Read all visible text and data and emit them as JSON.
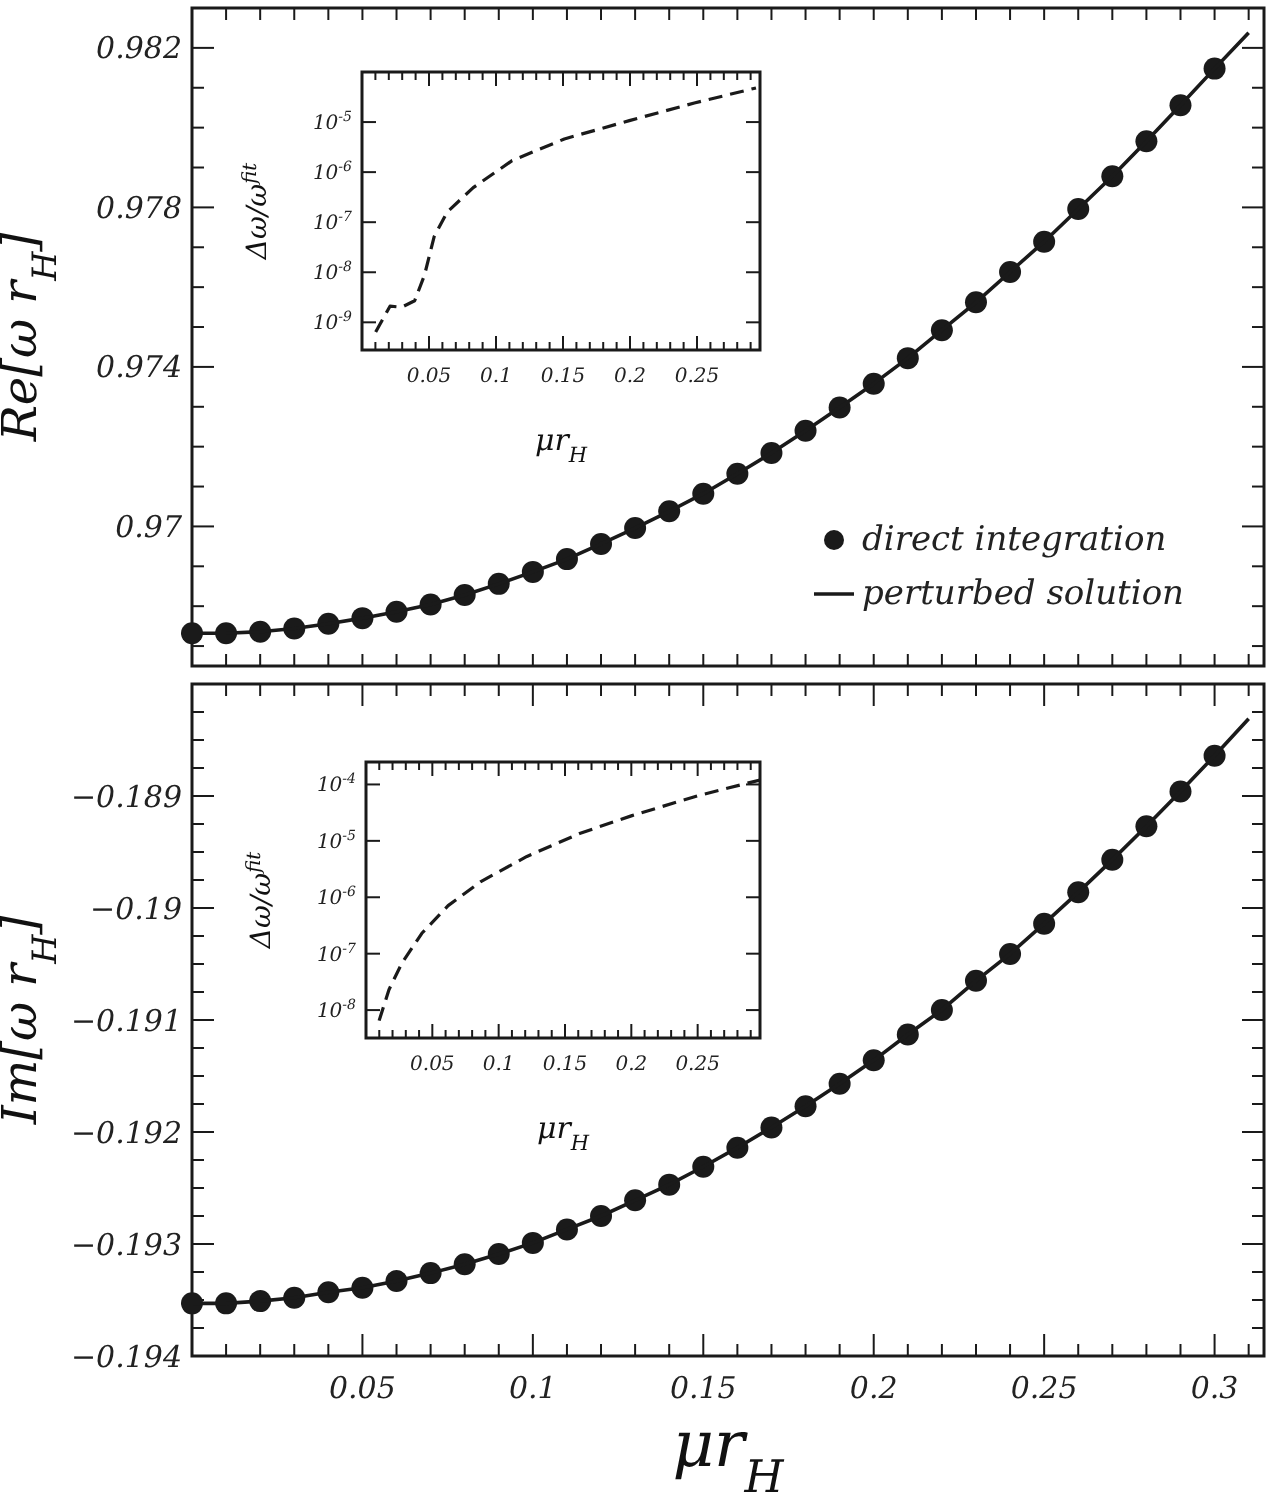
{
  "chart_data": [
    {
      "type": "line",
      "ylabel": "Re[ω r$_{H}$]",
      "xlim": [
        0,
        0.3145
      ],
      "ylim": [
        0.9665,
        0.983
      ],
      "tick_labels": "y",
      "grid": false,
      "legend": "bottom right",
      "xticks": [
        {
          "value": 0,
          "label": null
        },
        {
          "value": 0.01,
          "label": null
        },
        {
          "value": 0.02,
          "label": null
        },
        {
          "value": 0.03,
          "label": null
        },
        {
          "value": 0.04,
          "label": null
        },
        {
          "value": 0.05,
          "label": null
        },
        {
          "value": 0.06,
          "label": null
        },
        {
          "value": 0.07,
          "label": null
        },
        {
          "value": 0.08,
          "label": null
        },
        {
          "value": 0.09,
          "label": null
        },
        {
          "value": 0.1,
          "label": null
        },
        {
          "value": 0.11,
          "label": null
        },
        {
          "value": 0.12,
          "label": null
        },
        {
          "value": 0.13,
          "label": null
        },
        {
          "value": 0.14,
          "label": null
        },
        {
          "value": 0.15,
          "label": null
        },
        {
          "value": 0.16,
          "label": null
        },
        {
          "value": 0.17,
          "label": null
        },
        {
          "value": 0.18,
          "label": null
        },
        {
          "value": 0.19,
          "label": null
        },
        {
          "value": 0.2,
          "label": null
        },
        {
          "value": 0.21,
          "label": null
        },
        {
          "value": 0.22,
          "label": null
        },
        {
          "value": 0.23,
          "label": null
        },
        {
          "value": 0.24,
          "label": null
        },
        {
          "value": 0.25,
          "label": null
        },
        {
          "value": 0.26,
          "label": null
        },
        {
          "value": 0.27,
          "label": null
        },
        {
          "value": 0.28,
          "label": null
        },
        {
          "value": 0.29,
          "label": null
        },
        {
          "value": 0.3,
          "label": null
        },
        {
          "value": 0.31,
          "label": null
        }
      ],
      "yticks": [
        {
          "value": 0.967,
          "label": null
        },
        {
          "value": 0.968,
          "label": null
        },
        {
          "value": 0.969,
          "label": null
        },
        0.97,
        {
          "value": 0.971,
          "label": null
        },
        {
          "value": 0.972,
          "label": null
        },
        {
          "value": 0.973,
          "label": null
        },
        0.974,
        {
          "value": 0.975,
          "label": null
        },
        {
          "value": 0.976,
          "label": null
        },
        {
          "value": 0.977,
          "label": null
        },
        0.978,
        {
          "value": 0.979,
          "label": null
        },
        {
          "value": 0.98,
          "label": null
        },
        {
          "value": 0.981,
          "label": null
        },
        0.982
      ],
      "series": [
        {
          "name": "direct integration",
          "type": "scatter",
          "marker": "circle",
          "color": "#1a1a1a",
          "x": [
            0,
            0.01,
            0.02,
            0.03,
            0.04,
            0.05,
            0.06,
            0.07,
            0.08,
            0.09,
            0.1,
            0.11,
            0.12,
            0.13,
            0.14,
            0.15,
            0.16,
            0.17,
            0.18,
            0.19,
            0.2,
            0.21,
            0.22,
            0.23,
            0.24,
            0.25,
            0.26,
            0.27,
            0.28,
            0.29,
            0.3
          ],
          "values": [
            0.96732,
            0.96732,
            0.96736,
            0.96744,
            0.96756,
            0.9677,
            0.96786,
            0.96804,
            0.96828,
            0.96856,
            0.96886,
            0.96918,
            0.96956,
            0.96996,
            0.97038,
            0.97082,
            0.97132,
            0.97184,
            0.9724,
            0.97298,
            0.97358,
            0.97422,
            0.97492,
            0.97562,
            0.97638,
            0.97714,
            0.97796,
            0.97878,
            0.97966,
            0.98056,
            0.98148
          ]
        },
        {
          "name": "perturbed solution",
          "type": "line",
          "line_style": "solid",
          "color": "#1a1a1a",
          "x": [
            0,
            0.01,
            0.02,
            0.03,
            0.04,
            0.05,
            0.06,
            0.07,
            0.08,
            0.09,
            0.1,
            0.11,
            0.12,
            0.13,
            0.14,
            0.15,
            0.16,
            0.17,
            0.18,
            0.19,
            0.2,
            0.21,
            0.22,
            0.23,
            0.24,
            0.25,
            0.26,
            0.27,
            0.28,
            0.29,
            0.3,
            0.31
          ],
          "values": [
            0.96732,
            0.96732,
            0.96736,
            0.96744,
            0.96756,
            0.9677,
            0.96786,
            0.96804,
            0.96828,
            0.96856,
            0.96886,
            0.96918,
            0.96956,
            0.96996,
            0.97038,
            0.97082,
            0.97132,
            0.97184,
            0.9724,
            0.97298,
            0.97358,
            0.97422,
            0.97492,
            0.97562,
            0.97638,
            0.97714,
            0.97796,
            0.97878,
            0.97966,
            0.98056,
            0.98148,
            0.98238
          ]
        }
      ]
    },
    {
      "type": "line",
      "xlabel": "μr$_{H}$",
      "ylabel": "Δω/ω$^{fit}$",
      "log": "y",
      "xlim": [
        0,
        0.297
      ],
      "ylim": [
        2.8e-10,
        0.0001
      ],
      "grid": false,
      "xticks": [
        {
          "value": 0.01,
          "label": null
        },
        {
          "value": 0.02,
          "label": null
        },
        {
          "value": 0.03,
          "label": null
        },
        {
          "value": 0.04,
          "label": null
        },
        0.05,
        {
          "value": 0.06,
          "label": null
        },
        {
          "value": 0.07,
          "label": null
        },
        {
          "value": 0.08,
          "label": null
        },
        {
          "value": 0.09,
          "label": null
        },
        0.1,
        {
          "value": 0.11,
          "label": null
        },
        {
          "value": 0.12,
          "label": null
        },
        {
          "value": 0.13,
          "label": null
        },
        {
          "value": 0.14,
          "label": null
        },
        0.15,
        {
          "value": 0.16,
          "label": null
        },
        {
          "value": 0.17,
          "label": null
        },
        {
          "value": 0.18,
          "label": null
        },
        {
          "value": 0.19,
          "label": null
        },
        0.2,
        {
          "value": 0.21,
          "label": null
        },
        {
          "value": 0.22,
          "label": null
        },
        {
          "value": 0.23,
          "label": null
        },
        {
          "value": 0.24,
          "label": null
        },
        0.25,
        {
          "value": 0.26,
          "label": null
        },
        {
          "value": 0.27,
          "label": null
        },
        {
          "value": 0.28,
          "label": null
        },
        {
          "value": 0.29,
          "label": null
        }
      ],
      "yticks": [
        {
          "value": 1e-09,
          "label": "10$^{-9}$"
        },
        {
          "value": 1e-08,
          "label": "10$^{-8}$"
        },
        {
          "value": 1e-07,
          "label": "10$^{-7}$"
        },
        {
          "value": 1e-06,
          "label": "10$^{-6}$"
        },
        {
          "value": 1e-05,
          "label": "10$^{-5}$"
        }
      ],
      "series": [
        {
          "type": "line",
          "line_style": "dashed",
          "color": "#1a1a1a",
          "x": [
            0.0102,
            0.0209,
            0.0296,
            0.0393,
            0.0466,
            0.0539,
            0.0636,
            0.083,
            0.112,
            0.151,
            0.1995,
            0.248,
            0.294
          ],
          "values": [
            6.4e-10,
            2.1e-09,
            2e-09,
            2.7e-09,
            8.7e-09,
            5.2e-08,
            1.6e-07,
            4.9e-07,
            1.7e-06,
            4.6e-06,
            1.07e-05,
            2.4e-05,
            4.8e-05
          ]
        }
      ]
    },
    {
      "type": "line",
      "xlabel": "μr$_{H}$",
      "ylabel": "Im[ω r$_{H}$]",
      "xlim": [
        0,
        0.3145
      ],
      "ylim": [
        -0.194,
        -0.188
      ],
      "grid": false,
      "xticks": [
        {
          "value": 0,
          "label": null
        },
        {
          "value": 0.01,
          "label": null
        },
        {
          "value": 0.02,
          "label": null
        },
        {
          "value": 0.03,
          "label": null
        },
        {
          "value": 0.04,
          "label": null
        },
        0.05,
        {
          "value": 0.06,
          "label": null
        },
        {
          "value": 0.07,
          "label": null
        },
        {
          "value": 0.08,
          "label": null
        },
        {
          "value": 0.09,
          "label": null
        },
        0.1,
        {
          "value": 0.11,
          "label": null
        },
        {
          "value": 0.12,
          "label": null
        },
        {
          "value": 0.13,
          "label": null
        },
        {
          "value": 0.14,
          "label": null
        },
        0.15,
        {
          "value": 0.16,
          "label": null
        },
        {
          "value": 0.17,
          "label": null
        },
        {
          "value": 0.18,
          "label": null
        },
        {
          "value": 0.19,
          "label": null
        },
        0.2,
        {
          "value": 0.21,
          "label": null
        },
        {
          "value": 0.22,
          "label": null
        },
        {
          "value": 0.23,
          "label": null
        },
        {
          "value": 0.24,
          "label": null
        },
        0.25,
        {
          "value": 0.26,
          "label": null
        },
        {
          "value": 0.27,
          "label": null
        },
        {
          "value": 0.28,
          "label": null
        },
        {
          "value": 0.29,
          "label": null
        },
        0.3,
        {
          "value": 0.31,
          "label": null
        }
      ],
      "yticks": [
        {
          "value": -0.194,
          "label": "−0.194"
        },
        {
          "value": -0.19375,
          "label": null
        },
        {
          "value": -0.1935,
          "label": null
        },
        {
          "value": -0.19325,
          "label": null
        },
        {
          "value": -0.193,
          "label": "−0.193"
        },
        {
          "value": -0.19275,
          "label": null
        },
        {
          "value": -0.1925,
          "label": null
        },
        {
          "value": -0.19225,
          "label": null
        },
        {
          "value": -0.192,
          "label": "−0.192"
        },
        {
          "value": -0.19175,
          "label": null
        },
        {
          "value": -0.1915,
          "label": null
        },
        {
          "value": -0.19125,
          "label": null
        },
        {
          "value": -0.191,
          "label": "−0.191"
        },
        {
          "value": -0.19075,
          "label": null
        },
        {
          "value": -0.1905,
          "label": null
        },
        {
          "value": -0.19025,
          "label": null
        },
        {
          "value": -0.19,
          "label": "−0.19"
        },
        {
          "value": -0.18975,
          "label": null
        },
        {
          "value": -0.1895,
          "label": null
        },
        {
          "value": -0.18925,
          "label": null
        },
        {
          "value": -0.189,
          "label": "−0.189"
        },
        {
          "value": -0.18875,
          "label": null
        },
        {
          "value": -0.1885,
          "label": null
        },
        {
          "value": -0.18825,
          "label": null
        }
      ],
      "series": [
        {
          "type": "scatter",
          "marker": "circle",
          "color": "#1a1a1a",
          "x": [
            0,
            0.01,
            0.02,
            0.03,
            0.04,
            0.05,
            0.06,
            0.07,
            0.08,
            0.09,
            0.1,
            0.11,
            0.12,
            0.13,
            0.14,
            0.15,
            0.16,
            0.17,
            0.18,
            0.19,
            0.2,
            0.21,
            0.22,
            0.23,
            0.24,
            0.25,
            0.26,
            0.27,
            0.28,
            0.29,
            0.3
          ],
          "values": [
            -0.19353,
            -0.19353,
            -0.19351,
            -0.19348,
            -0.19343,
            -0.19339,
            -0.19333,
            -0.19326,
            -0.19318,
            -0.19309,
            -0.19299,
            -0.19287,
            -0.19275,
            -0.19261,
            -0.19247,
            -0.19231,
            -0.19214,
            -0.19196,
            -0.19177,
            -0.19157,
            -0.19136,
            -0.19113,
            -0.19091,
            -0.19065,
            -0.19041,
            -0.19014,
            -0.18986,
            -0.18957,
            -0.18927,
            -0.18896,
            -0.18864
          ]
        },
        {
          "type": "line",
          "line_style": "solid",
          "color": "#1a1a1a",
          "x": [
            0,
            0.01,
            0.02,
            0.03,
            0.04,
            0.05,
            0.06,
            0.07,
            0.08,
            0.09,
            0.1,
            0.11,
            0.12,
            0.13,
            0.14,
            0.15,
            0.16,
            0.17,
            0.18,
            0.19,
            0.2,
            0.21,
            0.22,
            0.23,
            0.24,
            0.25,
            0.26,
            0.27,
            0.28,
            0.29,
            0.3,
            0.31
          ],
          "values": [
            -0.19353,
            -0.19353,
            -0.19351,
            -0.19348,
            -0.19343,
            -0.19339,
            -0.19333,
            -0.19326,
            -0.19318,
            -0.19309,
            -0.19299,
            -0.19287,
            -0.19275,
            -0.19261,
            -0.19247,
            -0.19231,
            -0.19214,
            -0.19196,
            -0.19177,
            -0.19157,
            -0.19136,
            -0.19113,
            -0.19091,
            -0.19065,
            -0.19041,
            -0.19014,
            -0.18986,
            -0.18957,
            -0.18927,
            -0.18896,
            -0.18864,
            -0.18831
          ]
        }
      ]
    },
    {
      "type": "line",
      "xlabel": "μr$_{H}$",
      "ylabel": "Δω/ω$^{fit}$",
      "log": "y",
      "xlim": [
        0,
        0.297
      ],
      "ylim": [
        3.2e-09,
        0.00025
      ],
      "grid": false,
      "xticks": [
        {
          "value": 0.01,
          "label": null
        },
        {
          "value": 0.02,
          "label": null
        },
        {
          "value": 0.03,
          "label": null
        },
        {
          "value": 0.04,
          "label": null
        },
        0.05,
        {
          "value": 0.06,
          "label": null
        },
        {
          "value": 0.07,
          "label": null
        },
        {
          "value": 0.08,
          "label": null
        },
        {
          "value": 0.09,
          "label": null
        },
        0.1,
        {
          "value": 0.11,
          "label": null
        },
        {
          "value": 0.12,
          "label": null
        },
        {
          "value": 0.13,
          "label": null
        },
        {
          "value": 0.14,
          "label": null
        },
        0.15,
        {
          "value": 0.16,
          "label": null
        },
        {
          "value": 0.17,
          "label": null
        },
        {
          "value": 0.18,
          "label": null
        },
        {
          "value": 0.19,
          "label": null
        },
        0.2,
        {
          "value": 0.21,
          "label": null
        },
        {
          "value": 0.22,
          "label": null
        },
        {
          "value": 0.23,
          "label": null
        },
        {
          "value": 0.24,
          "label": null
        },
        0.25,
        {
          "value": 0.26,
          "label": null
        },
        {
          "value": 0.27,
          "label": null
        },
        {
          "value": 0.28,
          "label": null
        },
        {
          "value": 0.29,
          "label": null
        }
      ],
      "yticks": [
        {
          "value": 1e-08,
          "label": "10$^{-8}$"
        },
        {
          "value": 1e-07,
          "label": "10$^{-7}$"
        },
        {
          "value": 1e-06,
          "label": "10$^{-6}$"
        },
        {
          "value": 1e-05,
          "label": "10$^{-5}$"
        },
        {
          "value": 0.0001,
          "label": "10$^{-4}$"
        }
      ],
      "series": [
        {
          "type": "line",
          "line_style": "dashed",
          "color": "#1a1a1a",
          "x": [
            0.0099,
            0.0173,
            0.0272,
            0.0421,
            0.0619,
            0.0866,
            0.1213,
            0.161,
            0.2005,
            0.25,
            0.297
          ],
          "values": [
            6.5e-09,
            2.3e-08,
            6.9e-08,
            2.3e-07,
            7.1e-07,
            1.9e-06,
            5.3e-06,
            1.35e-05,
            2.8e-05,
            6.3e-05,
            0.00012
          ]
        }
      ]
    }
  ]
}
